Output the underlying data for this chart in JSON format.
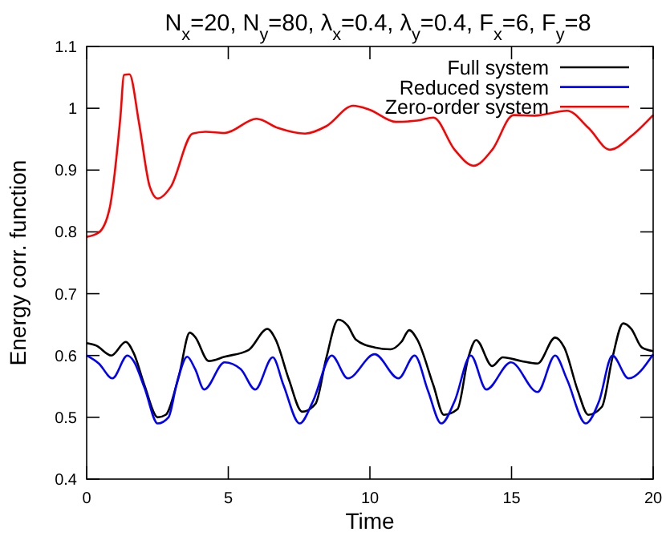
{
  "chart_data": {
    "type": "line",
    "title": "N$_{x}$=20, N$_{y}$=80, λ$_{x}$=0.4, λ$_{y}$=0.4, F$_{x}$=6, F$_{y}$=8",
    "xlabel": "Time",
    "ylabel": "Energy corr. function",
    "xlim": [
      0,
      20
    ],
    "ylim": [
      0.4,
      1.1
    ],
    "xticks": [
      0,
      5,
      10,
      15,
      20
    ],
    "yticks": [
      0.4,
      0.5,
      0.6,
      0.7,
      0.8,
      0.9,
      1,
      1.1
    ],
    "grid": false,
    "legend": "top right",
    "marker": "none",
    "line_style": "solid",
    "series": [
      {
        "name": "Full system",
        "color": "#000000",
        "x": [
          0,
          0.34,
          0.87,
          1.38,
          1.66,
          2.04,
          2.51,
          2.79,
          3.27,
          3.64,
          3.83,
          4.31,
          4.87,
          5.72,
          6.38,
          6.67,
          7.14,
          7.61,
          8.08,
          8.46,
          8.88,
          9.22,
          9.5,
          10.17,
          10.73,
          11.11,
          11.39,
          11.67,
          12.24,
          12.61,
          13.09,
          13.47,
          13.75,
          14.32,
          14.69,
          15.35,
          15.92,
          16.54,
          16.86,
          17.34,
          17.71,
          18.19,
          18.56,
          18.94,
          19.23,
          19.6,
          20
        ],
        "values": [
          0.62,
          0.616,
          0.6,
          0.622,
          0.604,
          0.552,
          0.5,
          0.504,
          0.57,
          0.637,
          0.63,
          0.591,
          0.598,
          0.609,
          0.643,
          0.626,
          0.561,
          0.509,
          0.522,
          0.596,
          0.658,
          0.648,
          0.626,
          0.613,
          0.61,
          0.622,
          0.641,
          0.626,
          0.552,
          0.504,
          0.513,
          0.596,
          0.625,
          0.583,
          0.597,
          0.591,
          0.587,
          0.629,
          0.613,
          0.543,
          0.504,
          0.517,
          0.596,
          0.652,
          0.643,
          0.613,
          0.607
        ]
      },
      {
        "name": "Reduced system",
        "color": "#0000ff",
        "x": [
          0,
          0.43,
          0.91,
          1.44,
          1.66,
          2.04,
          2.51,
          2.89,
          3.17,
          3.55,
          3.83,
          4.15,
          4.87,
          5.44,
          5.95,
          6.57,
          6.95,
          7.52,
          7.99,
          8.65,
          9.22,
          10.17,
          11.01,
          11.58,
          12.05,
          12.52,
          12.99,
          13.56,
          14.11,
          14.98,
          15.92,
          16.54,
          16.96,
          17.62,
          18.09,
          18.56,
          19.13,
          20
        ],
        "values": [
          0.6,
          0.587,
          0.563,
          0.6,
          0.591,
          0.548,
          0.49,
          0.5,
          0.552,
          0.598,
          0.578,
          0.545,
          0.589,
          0.578,
          0.545,
          0.597,
          0.552,
          0.49,
          0.526,
          0.6,
          0.563,
          0.602,
          0.563,
          0.6,
          0.543,
          0.49,
          0.526,
          0.6,
          0.545,
          0.589,
          0.541,
          0.6,
          0.561,
          0.49,
          0.526,
          0.6,
          0.563,
          0.602
        ]
      },
      {
        "name": "Zero-order system",
        "color": "#ff0000",
        "x": [
          0,
          0.43,
          0.81,
          1.19,
          1.32,
          1.51,
          1.85,
          2.23,
          2.51,
          2.97,
          3.74,
          4.21,
          4.87,
          6.0,
          6.76,
          7.71,
          8.46,
          9.41,
          9.97,
          10.92,
          11.67,
          12.24,
          12.99,
          13.66,
          14.32,
          15.07,
          15.82,
          16.96,
          17.72,
          18.47,
          19.23,
          20
        ],
        "values": [
          0.792,
          0.799,
          0.838,
          0.985,
          1.054,
          1.055,
          0.976,
          0.873,
          0.854,
          0.873,
          0.959,
          0.962,
          0.96,
          0.983,
          0.968,
          0.959,
          0.971,
          1.004,
          0.998,
          0.978,
          0.98,
          0.985,
          0.933,
          0.907,
          0.933,
          0.989,
          0.988,
          0.996,
          0.968,
          0.933,
          0.955,
          0.989
        ]
      }
    ]
  }
}
